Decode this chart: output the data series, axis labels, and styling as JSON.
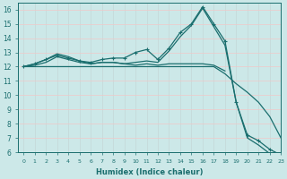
{
  "xlabel": "Humidex (Indice chaleur)",
  "xlim": [
    -0.5,
    23
  ],
  "ylim": [
    6,
    16.5
  ],
  "yticks": [
    6,
    7,
    8,
    9,
    10,
    11,
    12,
    13,
    14,
    15,
    16
  ],
  "xticks": [
    0,
    1,
    2,
    3,
    4,
    5,
    6,
    7,
    8,
    9,
    10,
    11,
    12,
    13,
    14,
    15,
    16,
    17,
    18,
    19,
    20,
    21,
    22,
    23
  ],
  "background_color": "#cce8e8",
  "line_color": "#1a6e6e",
  "grid_color_v": "#c4d8d8",
  "grid_color_h": "#f0c8c8",
  "curves": [
    {
      "x": [
        0,
        1,
        2,
        3,
        4,
        5,
        6,
        7,
        8,
        9,
        10,
        11,
        12,
        13,
        14,
        15,
        16,
        17,
        18,
        19,
        20,
        21,
        22,
        23
      ],
      "y": [
        12.0,
        12.2,
        12.5,
        12.8,
        12.6,
        12.4,
        12.3,
        12.5,
        12.6,
        12.6,
        13.0,
        13.2,
        12.5,
        13.3,
        14.4,
        15.0,
        16.2,
        15.0,
        13.8,
        9.5,
        7.2,
        6.8,
        6.2,
        5.8
      ],
      "marker": true
    },
    {
      "x": [
        0,
        1,
        2,
        3,
        4,
        5,
        6,
        7,
        8,
        9,
        10,
        11,
        12,
        13,
        14,
        15,
        16,
        17,
        18,
        19,
        20,
        21,
        22,
        23
      ],
      "y": [
        12.0,
        12.2,
        12.5,
        12.9,
        12.7,
        12.4,
        12.2,
        12.3,
        12.3,
        12.2,
        12.3,
        12.4,
        12.3,
        13.1,
        14.1,
        14.9,
        16.1,
        14.8,
        13.5,
        9.5,
        7.0,
        6.5,
        5.9,
        5.7
      ],
      "marker": false
    },
    {
      "x": [
        0,
        1,
        2,
        3,
        4,
        5,
        6,
        7,
        8,
        9,
        10,
        11,
        12,
        13,
        14,
        15,
        16,
        17,
        18
      ],
      "y": [
        12.0,
        12.1,
        12.3,
        12.7,
        12.5,
        12.3,
        12.2,
        12.3,
        12.3,
        12.2,
        12.1,
        12.2,
        12.1,
        12.2,
        12.2,
        12.2,
        12.2,
        12.1,
        11.7
      ],
      "marker": false
    },
    {
      "x": [
        0,
        1,
        2,
        3,
        4,
        5,
        6,
        7,
        8,
        9,
        10,
        11,
        12,
        13,
        14,
        15,
        16,
        17,
        18,
        19,
        20,
        21,
        22,
        23
      ],
      "y": [
        12.0,
        12.0,
        12.0,
        12.0,
        12.0,
        12.0,
        12.0,
        12.0,
        12.0,
        12.0,
        12.0,
        12.0,
        12.0,
        12.0,
        12.0,
        12.0,
        12.0,
        12.0,
        11.5,
        10.8,
        10.2,
        9.5,
        8.5,
        7.0
      ],
      "marker": false
    }
  ]
}
